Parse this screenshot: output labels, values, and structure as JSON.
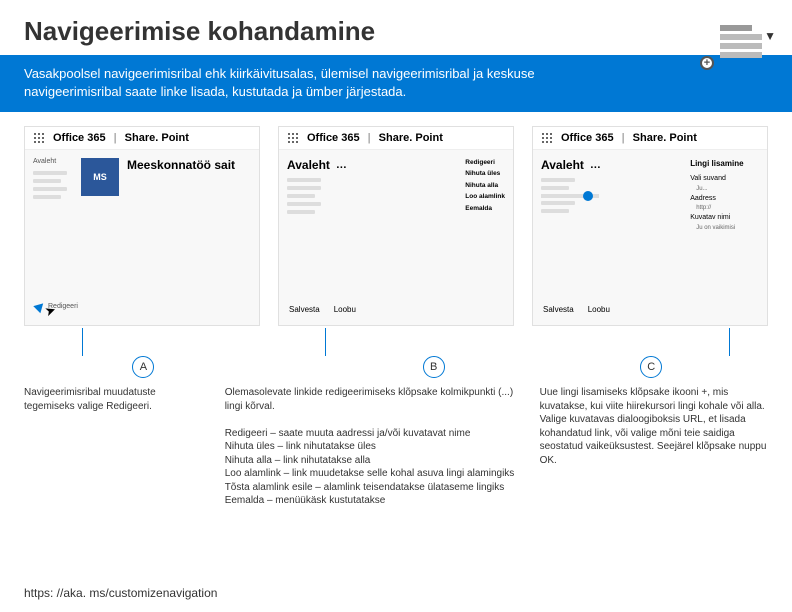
{
  "header": {
    "title": "Navigeerimise kohandamine",
    "desc": "Vasakpoolsel navigeerimisribal ehk kiirkäivitusalas, ülemisel navigeerimisribal ja keskuse navigeerimisribal saate linke lisada, kustutada ja ümber järjestada."
  },
  "panel_header": {
    "brand": "Office 365",
    "app": "Share. Point"
  },
  "panelA": {
    "nav_label": "Avaleht",
    "tile": "MS",
    "site": "Meeskonnatöö sait",
    "edit": "Redigeeri"
  },
  "panelB": {
    "avaleht": "Avaleht",
    "menu": {
      "m1": "Redigeeri",
      "m2": "Nihuta üles",
      "m3": "Nihuta alla",
      "m4": "Loo alamlink",
      "m5": "Eemalda"
    },
    "save": "Salvesta",
    "cancel": "Loobu"
  },
  "panelC": {
    "avaleht": "Avaleht",
    "link_add": "Lingi lisamine",
    "r1": "Vali suvand",
    "r1s": "Ju...",
    "r2": "Aadress",
    "r2s": "http://",
    "r3": "Kuvatav nimi",
    "r3s": "Ju on vaikimisi",
    "save": "Salvesta",
    "cancel": "Loobu"
  },
  "labels": {
    "a": "A",
    "b": "B",
    "c": "C"
  },
  "captions": {
    "a": "Navigeerimisribal muudatuste tegemiseks valige Redigeeri.",
    "b": "Olemasolevate linkide redigeerimiseks klõpsake kolmikpunkti (...) lingi kõrval.\n\nRedigeeri – saate muuta aadressi ja/või kuvatavat nime\nNihuta üles – link nihutatakse üles\nNihuta alla – link nihutatakse alla\nLoo alamlink – link muudetakse selle kohal asuva lingi alamingiks\nTõsta alamlink esile – alamlink teisendatakse ülataseme lingiks\nEemalda – menüükäsk kustutatakse",
    "c": "Uue lingi lisamiseks klõpsake ikooni +, mis kuvatakse, kui viite hiirekursori lingi kohale või alla. Valige kuvatavas dialoogiboksis URL, et lisada kohandatud link, või valige mõni teie saidiga seostatud vaikeüksustest. Seejärel klõpsake nuppu OK."
  },
  "footer": "https: //aka. ms/customizenavigation",
  "colors": {
    "brand": "#0078d4"
  }
}
